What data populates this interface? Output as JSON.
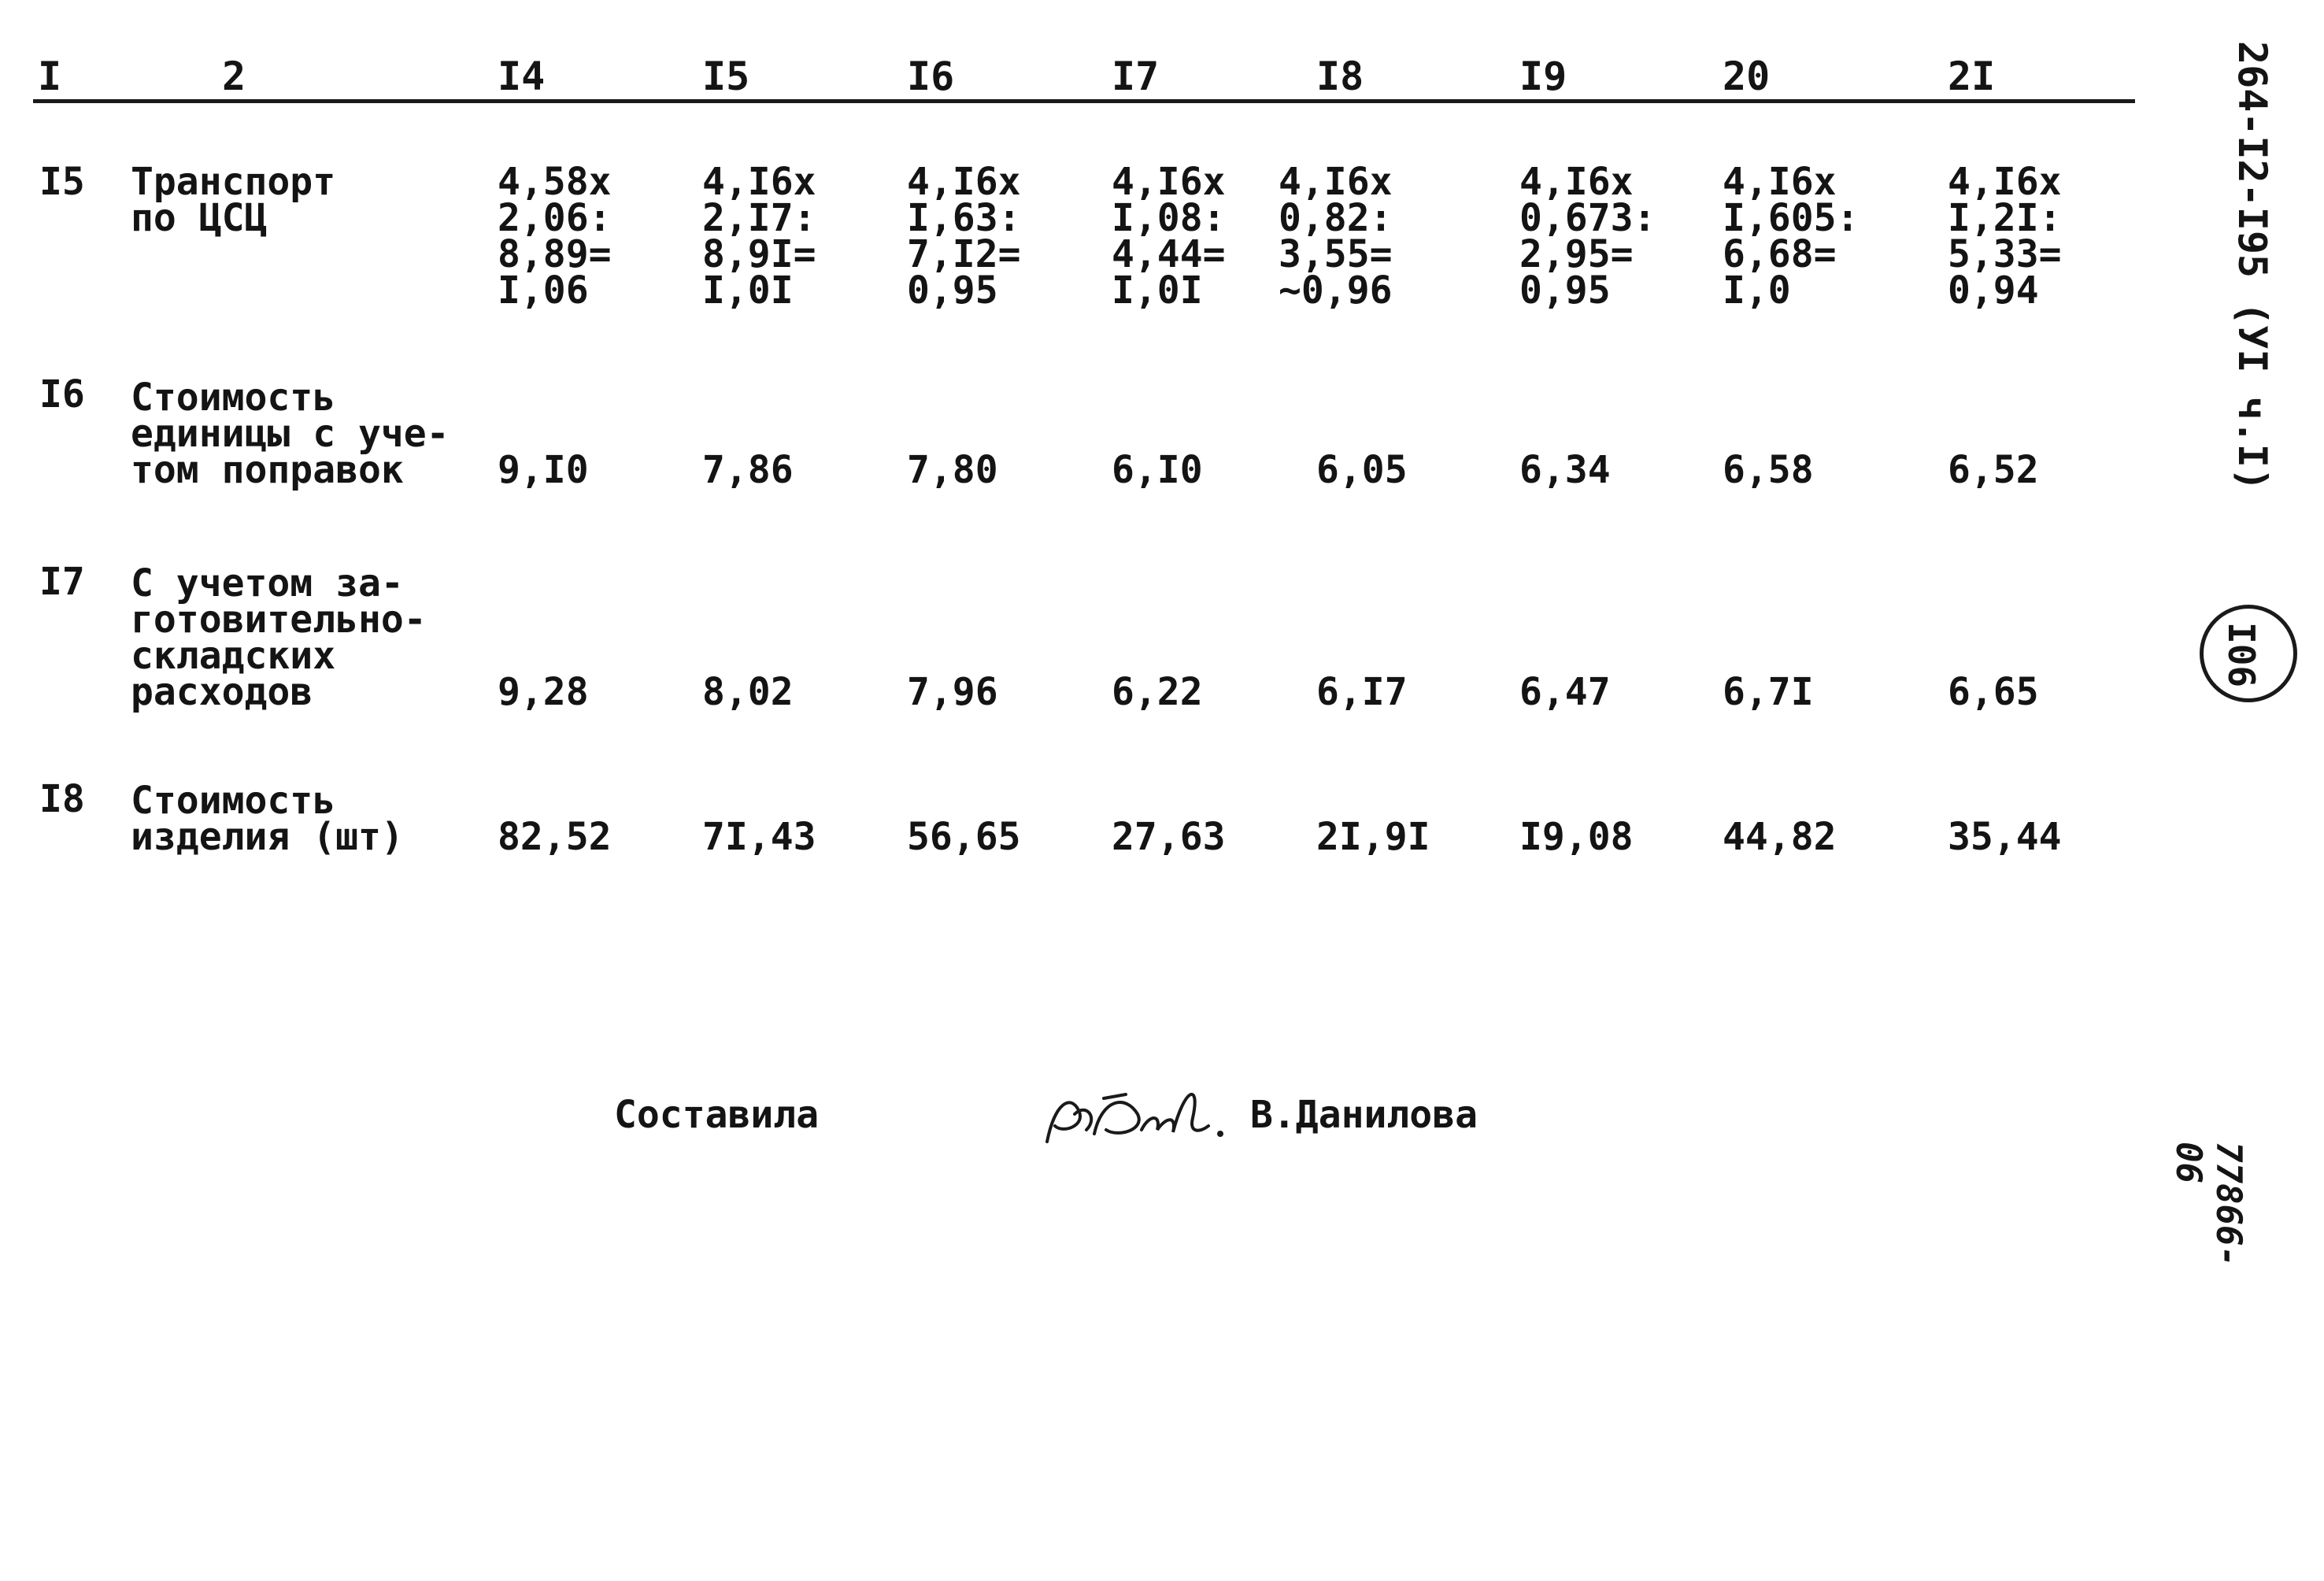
{
  "header": {
    "cols": [
      "I",
      "2",
      "I4",
      "I5",
      "I6",
      "I7",
      "I8",
      "I9",
      "20",
      "2I"
    ]
  },
  "rows": [
    {
      "num": "I5",
      "label": "Транспорт\nпо ЦСЦ",
      "values": [
        "4,58x\n2,06:\n8,89=\nI,06",
        "4,I6x\n2,I7:\n8,9I=\nI,0I",
        "4,I6x\nI,63:\n7,I2=\n0,95",
        "4,I6x\nI,08:\n4,44=\nI,0I",
        "4,I6x\n0,82:\n3,55=\n~0,96",
        "4,I6x\n0,673:\n2,95=\n0,95",
        "4,I6x\nI,605:\n6,68=\nI,0",
        "4,I6x\nI,2I:\n5,33=\n0,94"
      ]
    },
    {
      "num": "I6",
      "label": "Стоимость\nединицы с уче-\nтом поправок",
      "values": [
        "9,I0",
        "7,86",
        "7,80",
        "6,I0",
        "6,05",
        "6,34",
        "6,58",
        "6,52"
      ]
    },
    {
      "num": "I7",
      "label": "С учетом за-\nготовительно-\nскладских\nрасходов",
      "values": [
        "9,28",
        "8,02",
        "7,96",
        "6,22",
        "6,I7",
        "6,47",
        "6,7I",
        "6,65"
      ]
    },
    {
      "num": "I8",
      "label": "Стоимость\nизделия (шт)",
      "values": [
        "82,52",
        "7I,43",
        "56,65",
        "27,63",
        "2I,9I",
        "I9,08",
        "44,82",
        "35,44"
      ]
    }
  ],
  "signature": {
    "label": "Составила",
    "name": "В.Данилова"
  },
  "margin": {
    "code": "264-I2-I95 (УI ч.I)",
    "page_number": "I06",
    "bottom_mark": "77866-06"
  }
}
